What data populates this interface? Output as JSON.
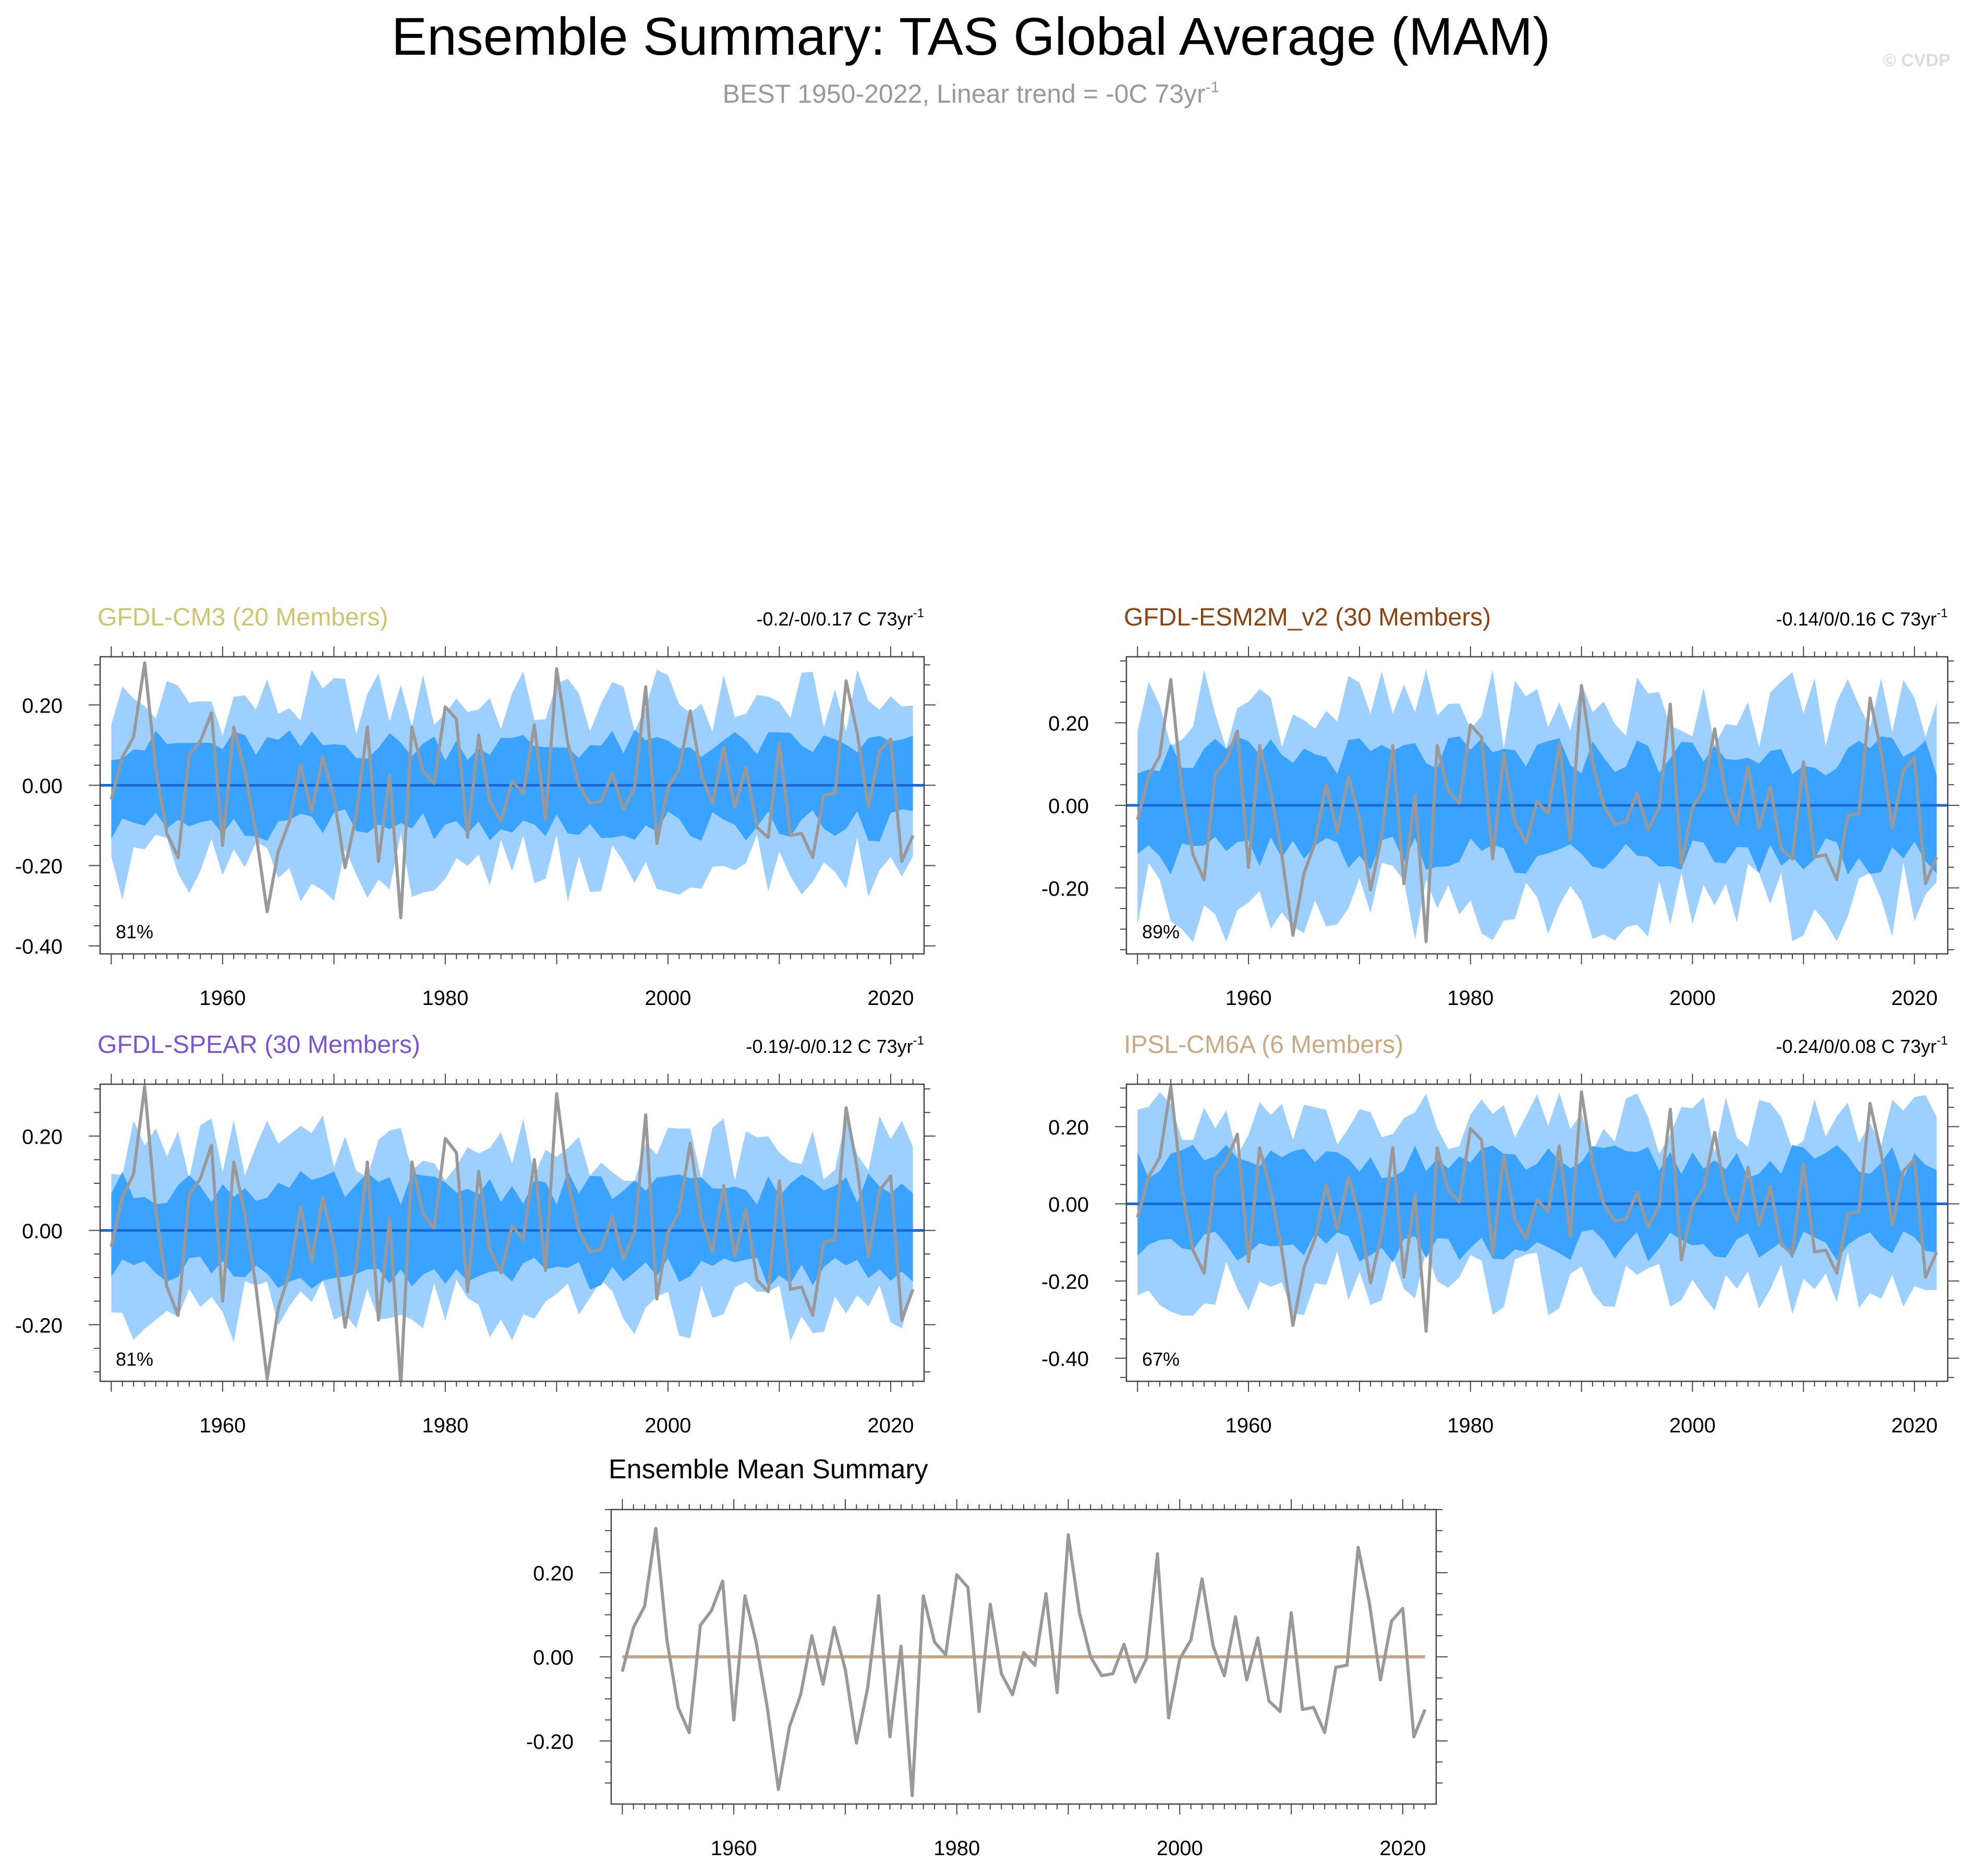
{
  "header": {
    "title": "Ensemble Summary: TAS Global Average (MAM)",
    "subtitle_main": "BEST 1950-2022, Linear trend = -0C 73yr",
    "subtitle_sup": "-1",
    "watermark": "© CVDP"
  },
  "colors": {
    "band_outer": "#9dcfff",
    "band_inner": "#3aa2ff",
    "ensemble_zero_line": "#1c6ad6",
    "observed_line": "#999999",
    "mean_zero_line": "#c7a487",
    "axis": "#444444"
  },
  "chart_data": [
    {
      "type": "area",
      "title": "GFDL-CM3 (20 Members)",
      "title_color": "#cfc46f",
      "trend_text": "-0.2/-0/0.17 C 73yr",
      "trend_sup": "-1",
      "percent_label": "81%",
      "x_start": 1950,
      "x_end": 2022,
      "xlim": [
        1949,
        2023
      ],
      "ylim": [
        -0.42,
        0.32
      ],
      "yticks": [
        -0.4,
        -0.2,
        0.0,
        0.2
      ],
      "ytick_labels": [
        "-0.40",
        "-0.20",
        "0.00",
        "0.20"
      ],
      "xticks": [
        1960,
        1980,
        2000,
        2020
      ],
      "xtick_labels": [
        "1960",
        "1980",
        "2000",
        "2020"
      ],
      "band_inner_half_width": 0.1,
      "band_outer_half_width": 0.2,
      "series": [
        {
          "values": [
            -0.035,
            0.07,
            0.12,
            0.305,
            0.04,
            -0.12,
            -0.18,
            0.075,
            0.11,
            0.18,
            -0.15,
            0.145,
            0.035,
            -0.12,
            -0.315,
            -0.165,
            -0.09,
            0.05,
            -0.065,
            0.07,
            -0.03,
            -0.205,
            -0.075,
            0.145,
            -0.19,
            0.025,
            -0.33,
            0.145,
            0.035,
            0.005,
            0.195,
            0.165,
            -0.13,
            0.125,
            -0.04,
            -0.09,
            0.01,
            -0.02,
            0.15,
            -0.085,
            0.29,
            0.105,
            0.0,
            -0.045,
            -0.04,
            0.03,
            -0.06,
            -0.005,
            0.245,
            -0.145,
            -0.005,
            0.04,
            0.185,
            0.025,
            -0.045,
            0.095,
            -0.055,
            0.045,
            -0.105,
            -0.13,
            0.105,
            -0.125,
            -0.12,
            -0.18,
            -0.025,
            -0.02,
            0.26,
            0.13,
            -0.055,
            0.085,
            0.115,
            -0.19,
            -0.125
          ]
        }
      ]
    },
    {
      "type": "area",
      "title": "GFDL-ESM2M_v2 (30 Members)",
      "title_color": "#8b4513",
      "trend_text": "-0.14/0/0.16 C 73yr",
      "trend_sup": "-1",
      "percent_label": "89%",
      "x_start": 1950,
      "x_end": 2022,
      "xlim": [
        1949,
        2023
      ],
      "ylim": [
        -0.36,
        0.36
      ],
      "yticks": [
        -0.2,
        0.0,
        0.2
      ],
      "ytick_labels": [
        "-0.20",
        "0.00",
        "0.20"
      ],
      "xticks": [
        1960,
        1980,
        2000,
        2020
      ],
      "xtick_labels": [
        "1960",
        "1980",
        "2000",
        "2020"
      ],
      "band_inner_half_width": 0.12,
      "band_outer_half_width": 0.23,
      "series": [
        {
          "values": [
            -0.035,
            0.07,
            0.12,
            0.305,
            0.04,
            -0.12,
            -0.18,
            0.075,
            0.11,
            0.18,
            -0.15,
            0.145,
            0.035,
            -0.12,
            -0.315,
            -0.165,
            -0.09,
            0.05,
            -0.065,
            0.07,
            -0.03,
            -0.205,
            -0.075,
            0.145,
            -0.19,
            0.025,
            -0.33,
            0.145,
            0.035,
            0.005,
            0.195,
            0.165,
            -0.13,
            0.125,
            -0.04,
            -0.09,
            0.01,
            -0.02,
            0.15,
            -0.085,
            0.29,
            0.105,
            0.0,
            -0.045,
            -0.04,
            0.03,
            -0.06,
            -0.005,
            0.245,
            -0.145,
            -0.005,
            0.04,
            0.185,
            0.025,
            -0.045,
            0.095,
            -0.055,
            0.045,
            -0.105,
            -0.13,
            0.105,
            -0.125,
            -0.12,
            -0.18,
            -0.025,
            -0.02,
            0.26,
            0.13,
            -0.055,
            0.085,
            0.115,
            -0.19,
            -0.125
          ]
        }
      ]
    },
    {
      "type": "area",
      "title": "GFDL-SPEAR (30 Members)",
      "title_color": "#7d55d1",
      "trend_text": "-0.19/-0/0.12 C 73yr",
      "trend_sup": "-1",
      "percent_label": "81%",
      "x_start": 1950,
      "x_end": 2022,
      "xlim": [
        1949,
        2023
      ],
      "ylim": [
        -0.32,
        0.31
      ],
      "yticks": [
        -0.2,
        0.0,
        0.2
      ],
      "ytick_labels": [
        "-0.20",
        "0.00",
        "0.20"
      ],
      "xticks": [
        1960,
        1980,
        2000,
        2020
      ],
      "xtick_labels": [
        "1960",
        "1980",
        "2000",
        "2020"
      ],
      "band_inner_half_width": 0.09,
      "band_outer_half_width": 0.17,
      "series": [
        {
          "values": [
            -0.035,
            0.07,
            0.12,
            0.305,
            0.04,
            -0.12,
            -0.18,
            0.075,
            0.11,
            0.18,
            -0.15,
            0.145,
            0.035,
            -0.12,
            -0.315,
            -0.165,
            -0.09,
            0.05,
            -0.065,
            0.07,
            -0.03,
            -0.205,
            -0.075,
            0.145,
            -0.19,
            0.025,
            -0.33,
            0.145,
            0.035,
            0.005,
            0.195,
            0.165,
            -0.13,
            0.125,
            -0.04,
            -0.09,
            0.01,
            -0.02,
            0.15,
            -0.085,
            0.29,
            0.105,
            0.0,
            -0.045,
            -0.04,
            0.03,
            -0.06,
            -0.005,
            0.245,
            -0.145,
            -0.005,
            0.04,
            0.185,
            0.025,
            -0.045,
            0.095,
            -0.055,
            0.045,
            -0.105,
            -0.13,
            0.105,
            -0.125,
            -0.12,
            -0.18,
            -0.025,
            -0.02,
            0.26,
            0.13,
            -0.055,
            0.085,
            0.115,
            -0.19,
            -0.125
          ]
        }
      ]
    },
    {
      "type": "area",
      "title": "IPSL-CM6A (6 Members)",
      "title_color": "#c9aa82",
      "trend_text": "-0.24/0/0.08 C 73yr",
      "trend_sup": "-1",
      "percent_label": "67%",
      "x_start": 1950,
      "x_end": 2022,
      "xlim": [
        1949,
        2023
      ],
      "ylim": [
        -0.46,
        0.31
      ],
      "yticks": [
        -0.4,
        -0.2,
        0.0,
        0.2
      ],
      "ytick_labels": [
        "-0.40",
        "-0.20",
        "0.00",
        "0.20"
      ],
      "xticks": [
        1960,
        1980,
        2000,
        2020
      ],
      "xtick_labels": [
        "1960",
        "1980",
        "2000",
        "2020"
      ],
      "band_inner_half_width": 0.11,
      "band_outer_half_width": 0.2,
      "series": [
        {
          "values": [
            -0.035,
            0.07,
            0.12,
            0.305,
            0.04,
            -0.12,
            -0.18,
            0.075,
            0.11,
            0.18,
            -0.15,
            0.145,
            0.035,
            -0.12,
            -0.315,
            -0.165,
            -0.09,
            0.05,
            -0.065,
            0.07,
            -0.03,
            -0.205,
            -0.075,
            0.145,
            -0.19,
            0.025,
            -0.33,
            0.145,
            0.035,
            0.005,
            0.195,
            0.165,
            -0.13,
            0.125,
            -0.04,
            -0.09,
            0.01,
            -0.02,
            0.15,
            -0.085,
            0.29,
            0.105,
            0.0,
            -0.045,
            -0.04,
            0.03,
            -0.06,
            -0.005,
            0.245,
            -0.145,
            -0.005,
            0.04,
            0.185,
            0.025,
            -0.045,
            0.095,
            -0.055,
            0.045,
            -0.105,
            -0.13,
            0.105,
            -0.125,
            -0.12,
            -0.18,
            -0.025,
            -0.02,
            0.26,
            0.13,
            -0.055,
            0.085,
            0.115,
            -0.19,
            -0.125
          ]
        }
      ]
    },
    {
      "type": "line",
      "title": "Ensemble Mean Summary",
      "title_color": "#000000",
      "x_start": 1950,
      "x_end": 2022,
      "xlim": [
        1949,
        2023
      ],
      "ylim": [
        -0.35,
        0.35
      ],
      "yticks": [
        -0.2,
        0.0,
        0.2
      ],
      "ytick_labels": [
        "-0.20",
        "0.00",
        "0.20"
      ],
      "xticks": [
        1960,
        1980,
        2000,
        2020
      ],
      "xtick_labels": [
        "1960",
        "1980",
        "2000",
        "2020"
      ],
      "series": [
        {
          "values": [
            -0.035,
            0.07,
            0.12,
            0.305,
            0.04,
            -0.12,
            -0.18,
            0.075,
            0.11,
            0.18,
            -0.15,
            0.145,
            0.035,
            -0.12,
            -0.315,
            -0.165,
            -0.09,
            0.05,
            -0.065,
            0.07,
            -0.03,
            -0.205,
            -0.075,
            0.145,
            -0.19,
            0.025,
            -0.33,
            0.145,
            0.035,
            0.005,
            0.195,
            0.165,
            -0.13,
            0.125,
            -0.04,
            -0.09,
            0.01,
            -0.02,
            0.15,
            -0.085,
            0.29,
            0.105,
            0.0,
            -0.045,
            -0.04,
            0.03,
            -0.06,
            -0.005,
            0.245,
            -0.145,
            -0.005,
            0.04,
            0.185,
            0.025,
            -0.045,
            0.095,
            -0.055,
            0.045,
            -0.105,
            -0.13,
            0.105,
            -0.125,
            -0.12,
            -0.18,
            -0.025,
            -0.02,
            0.26,
            0.13,
            -0.055,
            0.085,
            0.115,
            -0.19,
            -0.125
          ]
        }
      ]
    }
  ]
}
